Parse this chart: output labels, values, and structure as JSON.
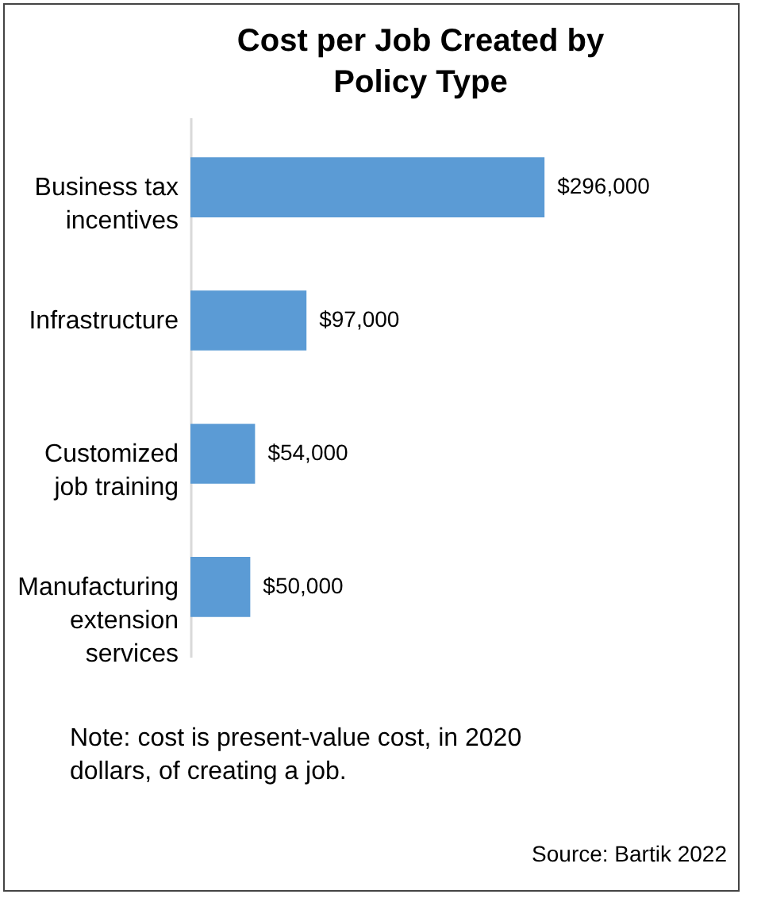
{
  "chart_data": {
    "type": "bar",
    "orientation": "horizontal",
    "title": "Cost per Job Created by Policy Type",
    "categories": [
      "Business tax incentives",
      "Infrastructure",
      "Customized job training",
      "Manufacturing extension services"
    ],
    "values": [
      296000,
      97000,
      54000,
      50000
    ],
    "value_labels": [
      "$296,000",
      "$97,000",
      "$54,000",
      "$50,000"
    ],
    "color": "#5b9bd5",
    "annotations": [
      "Note: cost is present-value cost, in 2020 dollars, of creating a job.",
      "Source: Bartik 2022"
    ]
  }
}
